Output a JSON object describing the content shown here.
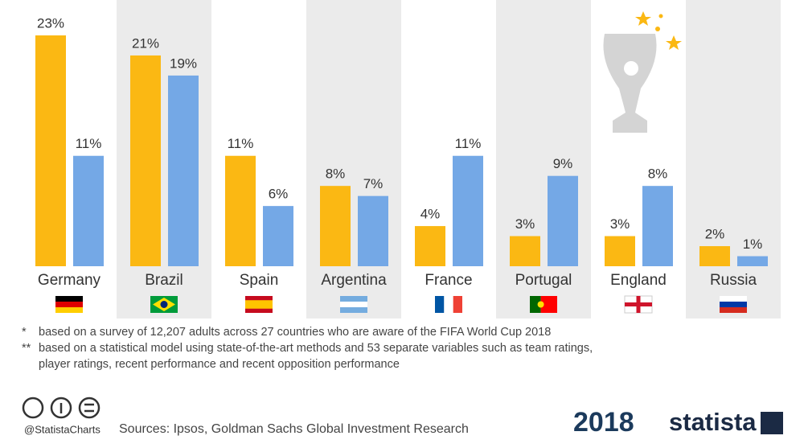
{
  "chart_data": {
    "type": "bar",
    "categories": [
      "Germany",
      "Brazil",
      "Spain",
      "Argentina",
      "France",
      "Portugal",
      "England",
      "Russia"
    ],
    "series": [
      {
        "color": "#fbb813",
        "values": [
          23,
          21,
          11,
          8,
          4,
          3,
          3,
          2
        ],
        "value_labels": [
          "23%",
          "21%",
          "11%",
          "8%",
          "4%",
          "3%",
          "3%",
          "2%"
        ]
      },
      {
        "color": "#74a8e6",
        "values": [
          11,
          19,
          6,
          7,
          11,
          9,
          8,
          1
        ],
        "value_labels": [
          "11%",
          "19%",
          "6%",
          "7%",
          "11%",
          "9%",
          "8%",
          "1%"
        ]
      }
    ]
  },
  "notes": [
    {
      "marker": "*",
      "lines": [
        "based on a survey of 12,207 adults across 27 countries who are aware of the FIFA World Cup 2018"
      ]
    },
    {
      "marker": "**",
      "lines": [
        "based on a statistical model using state-of-the-art methods and 53 separate variables such as team ratings,",
        "player ratings, recent performance and recent opposition performance"
      ]
    }
  ],
  "footer": {
    "handle": "@StatistaCharts",
    "sources": "Sources: Ipsos, Goldman Sachs Global Investment Research",
    "event": "2018",
    "brand": "statista"
  }
}
